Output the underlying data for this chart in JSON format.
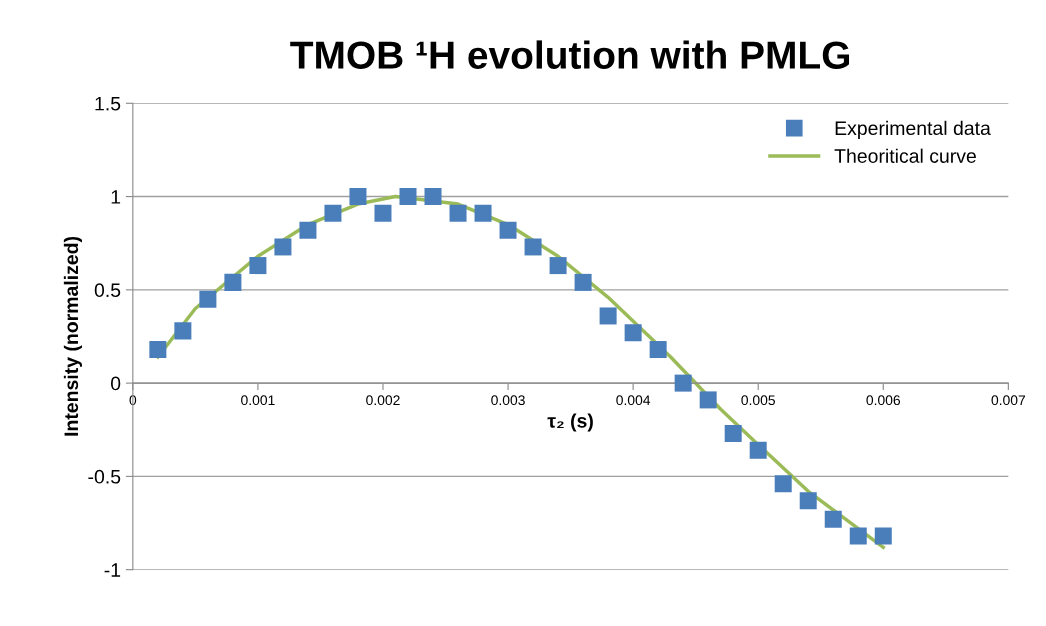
{
  "chart_data": {
    "type": "scatter",
    "title": "TMOB ¹H evolution with PMLG",
    "xlabel": "τ₂ (s)",
    "ylabel": "Intensity (normalized)",
    "series": [
      {
        "name": "Experimental data",
        "color": "#4a7ebb",
        "marker": "square",
        "x": [
          0.0002,
          0.0004,
          0.0006,
          0.0008,
          0.001,
          0.0012,
          0.0014,
          0.0016,
          0.0018,
          0.002,
          0.0022,
          0.0024,
          0.0026,
          0.0028,
          0.003,
          0.0032,
          0.0034,
          0.0036,
          0.0038,
          0.004,
          0.0042,
          0.0044,
          0.0046,
          0.0048,
          0.005,
          0.0052,
          0.0054,
          0.0056,
          0.0058,
          0.006
        ],
        "values": [
          0.18,
          0.28,
          0.45,
          0.54,
          0.63,
          0.73,
          0.82,
          0.91,
          1.0,
          0.91,
          1.0,
          1.0,
          0.91,
          0.91,
          0.82,
          0.73,
          0.63,
          0.54,
          0.36,
          0.27,
          0.18,
          0.0,
          -0.09,
          -0.27,
          -0.36,
          -0.54,
          -0.63,
          -0.73,
          -0.82,
          -0.82
        ]
      },
      {
        "name": "Theoritical curve",
        "type": "line",
        "color": "#9bbb59",
        "x": [
          0.0002,
          0.0005,
          0.001,
          0.0014,
          0.0018,
          0.0021,
          0.0026,
          0.003,
          0.0034,
          0.0038,
          0.0043,
          0.0047,
          0.005,
          0.0054,
          0.0058,
          0.006
        ],
        "values": [
          0.14,
          0.4,
          0.68,
          0.85,
          0.96,
          1.0,
          0.96,
          0.85,
          0.68,
          0.46,
          0.14,
          -0.14,
          -0.33,
          -0.58,
          -0.78,
          -0.88
        ]
      }
    ],
    "xlim": [
      0,
      0.007
    ],
    "xticks": [
      0,
      0.001,
      0.002,
      0.003,
      0.004,
      0.005,
      0.006,
      0.007
    ],
    "ylim": [
      -1,
      1.5
    ],
    "yticks": [
      -1,
      -0.5,
      0,
      0.5,
      1,
      1.5
    ],
    "grid": "y",
    "legend": "top right"
  }
}
